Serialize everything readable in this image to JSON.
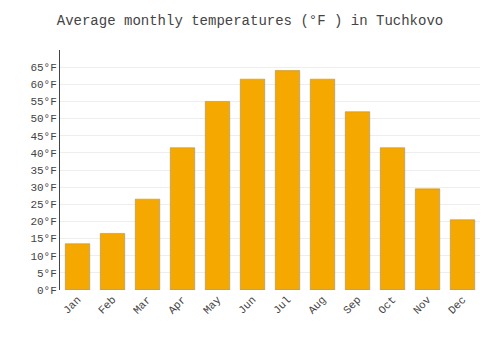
{
  "chart_data": {
    "type": "bar",
    "title": "Average monthly temperatures (°F ) in Tuchkovo",
    "categories": [
      "Jan",
      "Feb",
      "Mar",
      "Apr",
      "May",
      "Jun",
      "Jul",
      "Aug",
      "Sep",
      "Oct",
      "Nov",
      "Dec"
    ],
    "values": [
      13.5,
      16.5,
      26.5,
      41.5,
      55.0,
      61.5,
      64.0,
      61.5,
      52.0,
      41.5,
      29.5,
      20.5
    ],
    "color": "#F5A800",
    "ylim": [
      0,
      70
    ],
    "yticks": [
      {
        "value": 0,
        "label": "0°F"
      },
      {
        "value": 5,
        "label": "5°F"
      },
      {
        "value": 10,
        "label": "10°F"
      },
      {
        "value": 15,
        "label": "15°F"
      },
      {
        "value": 20,
        "label": "20°F"
      },
      {
        "value": 25,
        "label": "25°F"
      },
      {
        "value": 30,
        "label": "30°F"
      },
      {
        "value": 35,
        "label": "35°F"
      },
      {
        "value": 40,
        "label": "40°F"
      },
      {
        "value": 45,
        "label": "45°F"
      },
      {
        "value": 50,
        "label": "50°F"
      },
      {
        "value": 55,
        "label": "55°F"
      },
      {
        "value": 60,
        "label": "60°F"
      },
      {
        "value": 65,
        "label": "65°F"
      }
    ],
    "grid": true
  }
}
